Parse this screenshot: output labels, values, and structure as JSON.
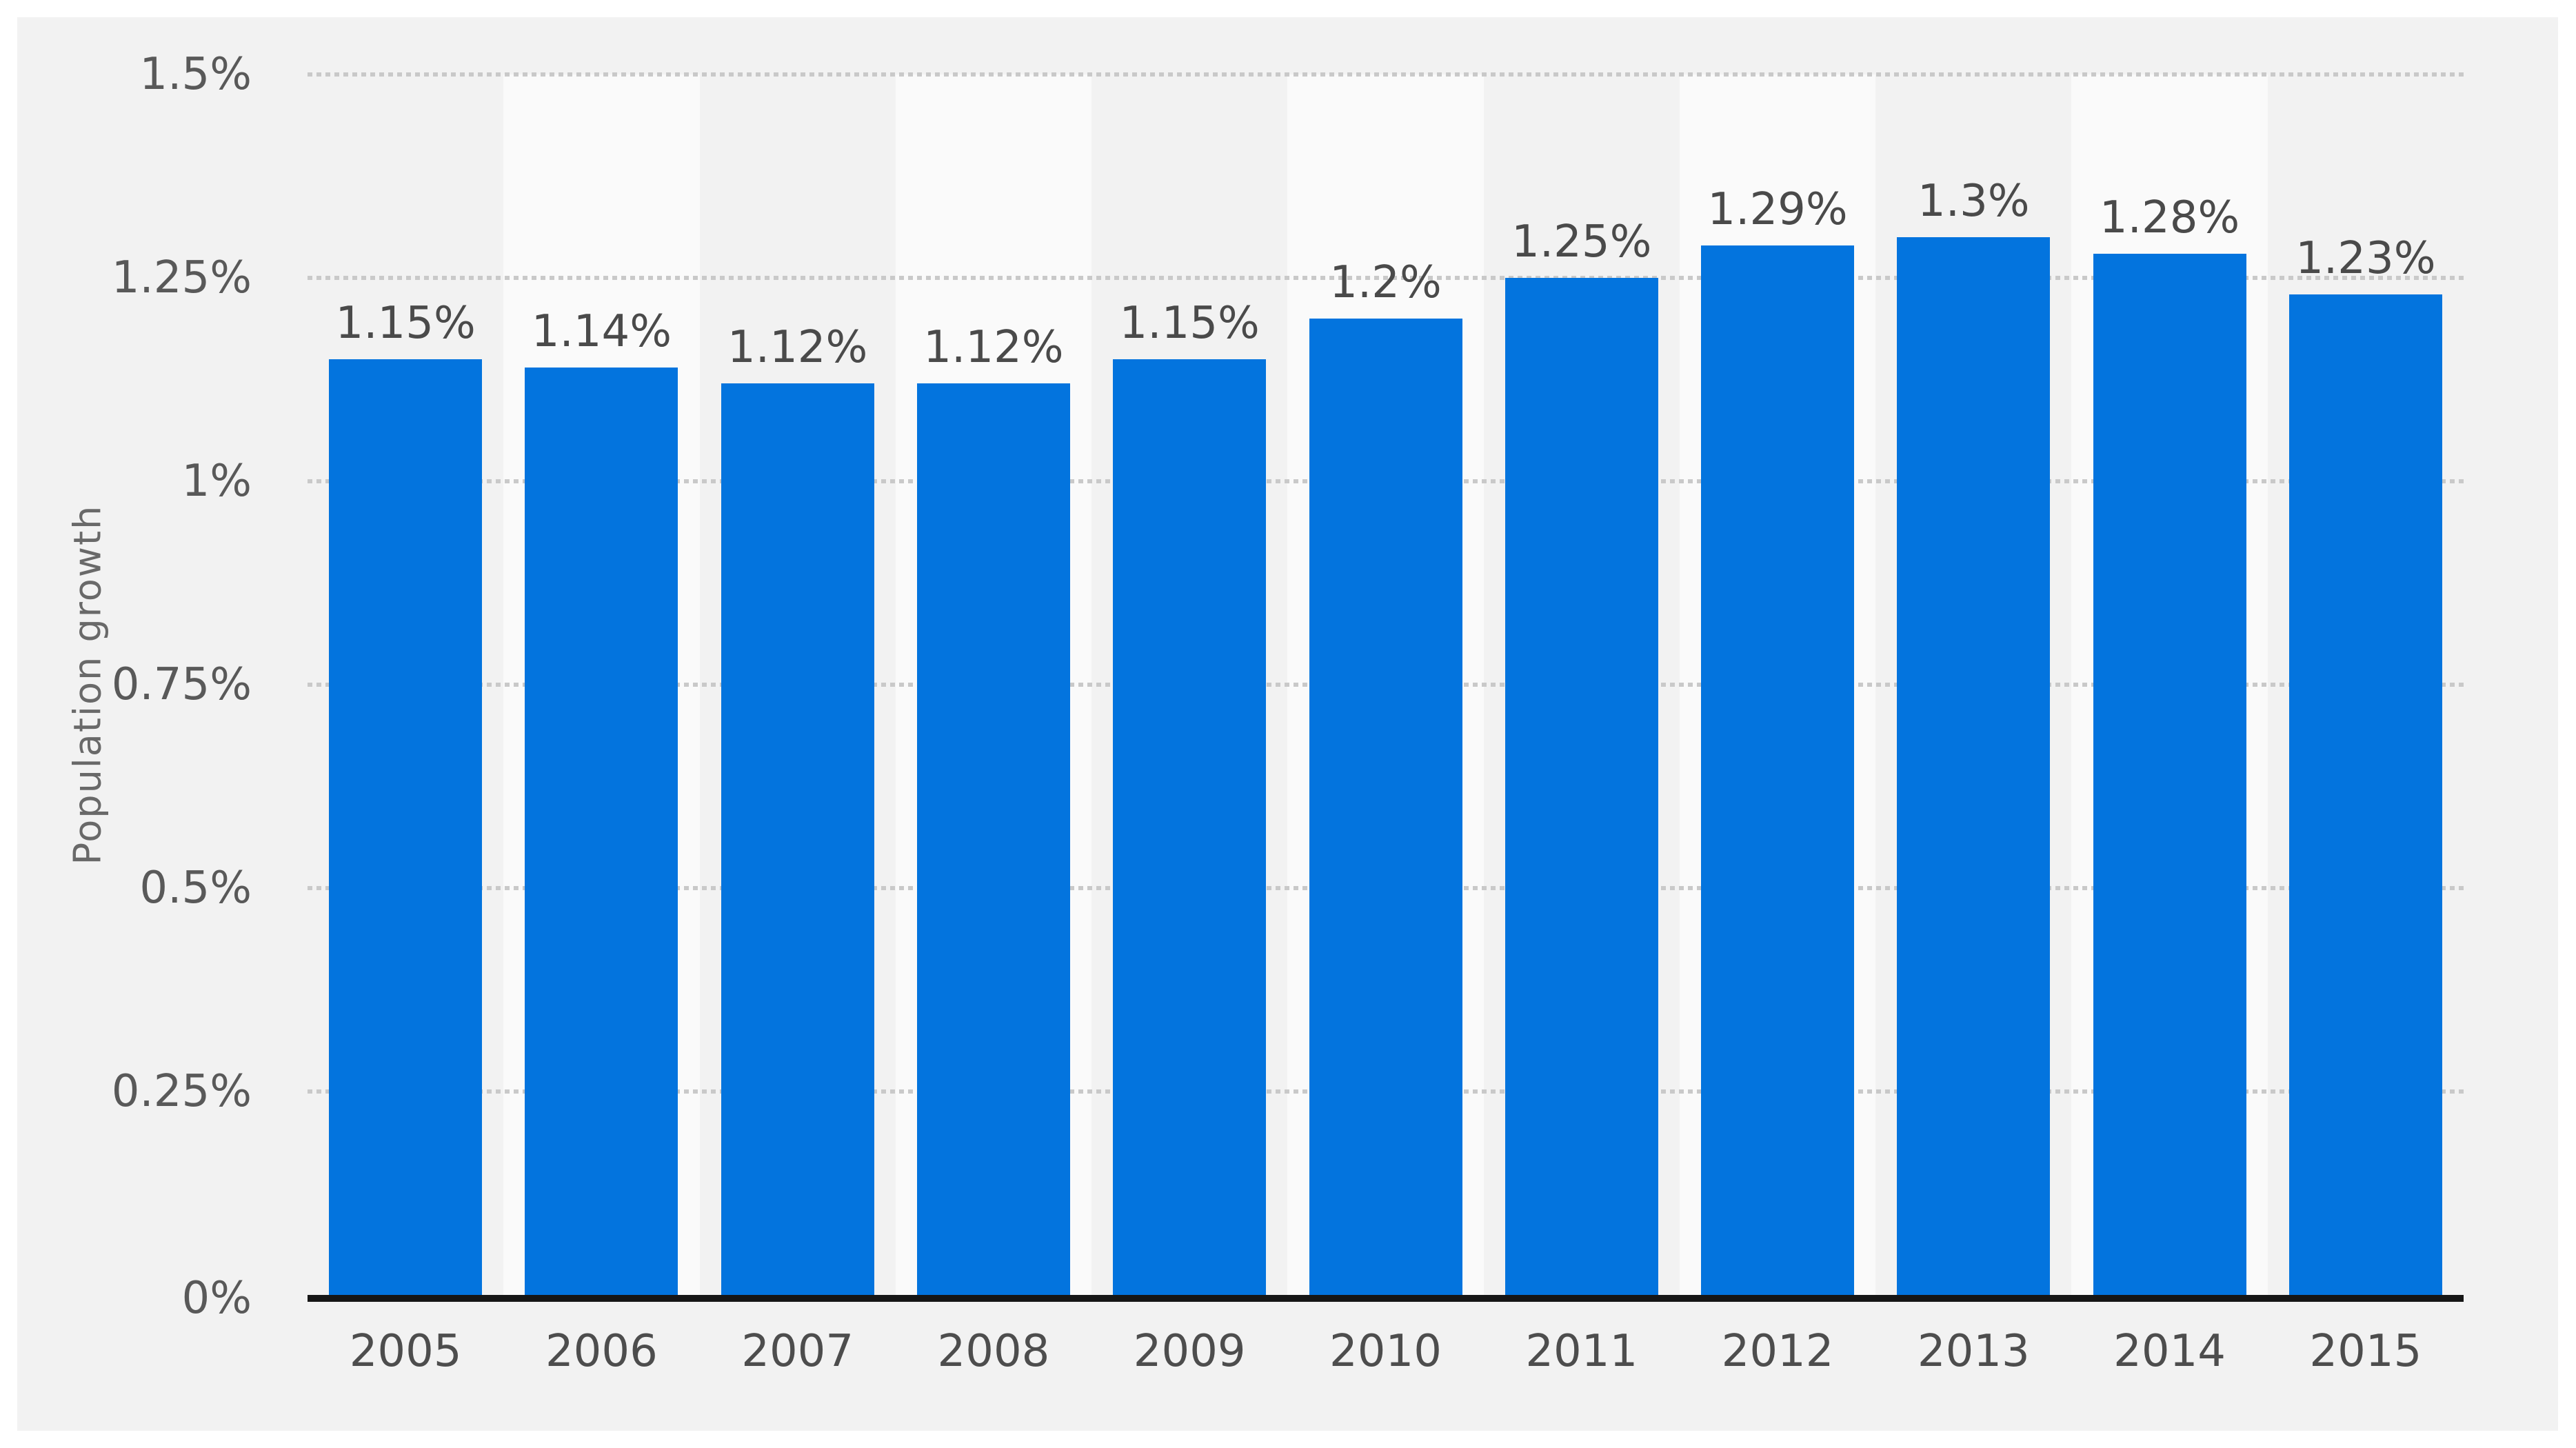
{
  "chart_data": {
    "type": "bar",
    "title": "",
    "xlabel": "",
    "ylabel": "Population growth",
    "categories": [
      "2005",
      "2006",
      "2007",
      "2008",
      "2009",
      "2010",
      "2011",
      "2012",
      "2013",
      "2014",
      "2015"
    ],
    "values": [
      1.15,
      1.14,
      1.12,
      1.12,
      1.15,
      1.2,
      1.25,
      1.29,
      1.3,
      1.28,
      1.23
    ],
    "value_labels": [
      "1.15%",
      "1.14%",
      "1.12%",
      "1.12%",
      "1.15%",
      "1.2%",
      "1.25%",
      "1.29%",
      "1.3%",
      "1.28%",
      "1.23%"
    ],
    "y_ticks": [
      {
        "value": 0,
        "label": "0%"
      },
      {
        "value": 0.25,
        "label": "0.25%"
      },
      {
        "value": 0.5,
        "label": "0.5%"
      },
      {
        "value": 0.75,
        "label": "0.75%"
      },
      {
        "value": 1,
        "label": "1%"
      },
      {
        "value": 1.25,
        "label": "1.25%"
      },
      {
        "value": 1.5,
        "label": "1.5%"
      }
    ],
    "ylim": [
      0,
      1.5
    ],
    "grid": "horizontal-dotted",
    "legend_position": "none",
    "plot_band_alternation": "alternating light bands behind even-year columns"
  },
  "colors": {
    "bar": "#0374de",
    "page_background": "#ffffff",
    "panel_background": "#f2f2f2",
    "band_light": "#fafafa",
    "gridline": "#c9c9c9",
    "axis_line": "#161616",
    "tick_label": "#595959",
    "data_label": "#4a4a4a",
    "x_label": "#4d4d4d",
    "y_axis_title": "#696969"
  }
}
